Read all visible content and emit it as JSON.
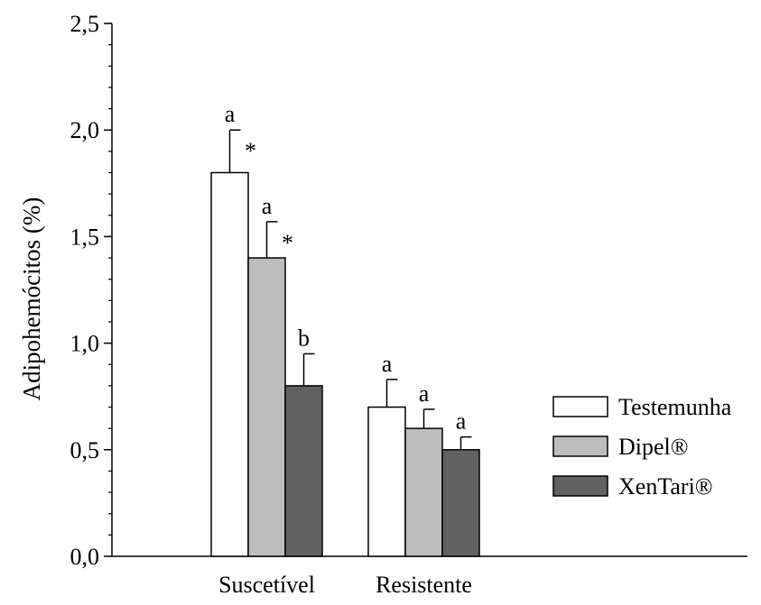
{
  "chart_data": {
    "type": "bar",
    "ylabel": "Adipohemócitos (%)",
    "xlabel": "",
    "ylim": [
      0,
      2.5
    ],
    "y_major_ticks": [
      {
        "value": 0,
        "label": "0,0"
      },
      {
        "value": 0.5,
        "label": "0,5"
      },
      {
        "value": 1.0,
        "label": "1,0"
      },
      {
        "value": 1.5,
        "label": "1,5"
      },
      {
        "value": 2.0,
        "label": "2,0"
      },
      {
        "value": 2.5,
        "label": "2,5"
      }
    ],
    "y_minor_step": 0.1,
    "categories": [
      "Suscetível",
      "Resistente"
    ],
    "series": [
      {
        "name": "Testemunha",
        "color": "#ffffff",
        "values": [
          1.8,
          0.7
        ],
        "errors": [
          0.2,
          0.13
        ],
        "letters": [
          "a",
          "a"
        ],
        "stars": [
          "*",
          ""
        ]
      },
      {
        "name": "Dipel®",
        "color": "#bdbdbd",
        "values": [
          1.4,
          0.6
        ],
        "errors": [
          0.17,
          0.09
        ],
        "letters": [
          "a",
          "a"
        ],
        "stars": [
          "*",
          ""
        ]
      },
      {
        "name": "XenTari®",
        "color": "#616161",
        "values": [
          0.8,
          0.5
        ],
        "errors": [
          0.15,
          0.06
        ],
        "letters": [
          "b",
          "a"
        ],
        "stars": [
          "",
          ""
        ]
      }
    ],
    "legend_position": "right",
    "grid": false
  }
}
